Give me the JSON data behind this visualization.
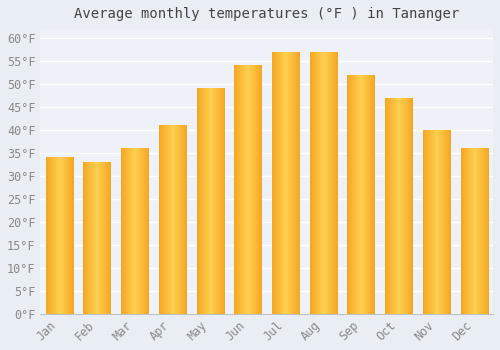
{
  "title": "Average monthly temperatures (°F ) in Tananger",
  "months": [
    "Jan",
    "Feb",
    "Mar",
    "Apr",
    "May",
    "Jun",
    "Jul",
    "Aug",
    "Sep",
    "Oct",
    "Nov",
    "Dec"
  ],
  "values": [
    34,
    33,
    36,
    41,
    49,
    54,
    57,
    57,
    52,
    47,
    40,
    36
  ],
  "bar_color_left": "#F5A623",
  "bar_color_center": "#FFD050",
  "bar_color_right": "#F5A623",
  "background_color": "#E8EEF4",
  "plot_bg_color": "#EEF2F8",
  "grid_color": "#FFFFFF",
  "ylim": [
    0,
    62
  ],
  "yticks": [
    0,
    5,
    10,
    15,
    20,
    25,
    30,
    35,
    40,
    45,
    50,
    55,
    60
  ],
  "title_fontsize": 10,
  "tick_fontsize": 8.5,
  "tick_color": "#888888",
  "title_color": "#444444",
  "font_family": "monospace"
}
